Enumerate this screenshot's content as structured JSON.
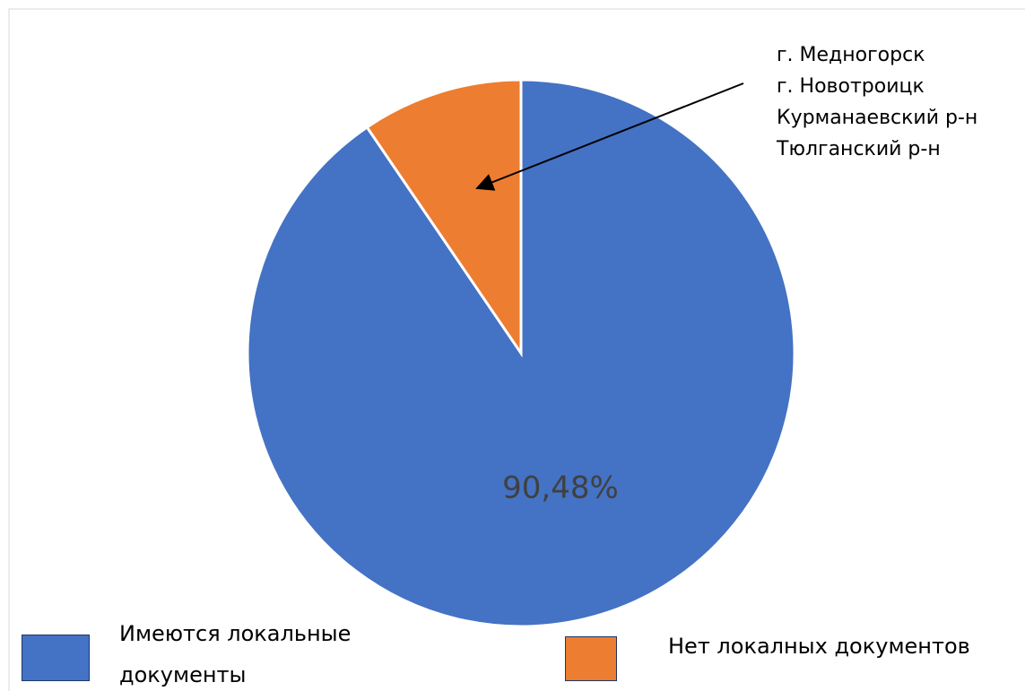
{
  "chart_data": {
    "type": "pie",
    "categories": [
      "Имеются локальные документы",
      "Нет локалных документов"
    ],
    "values": [
      90.48,
      9.52
    ],
    "value_labels": [
      "90,48%",
      null
    ],
    "colors": [
      "#4472c4",
      "#ed7d31"
    ],
    "annotation": [
      "г. Медногорск",
      "г. Новотроицк",
      "Курманаевский р-н",
      "Тюлганский р-н"
    ]
  }
}
